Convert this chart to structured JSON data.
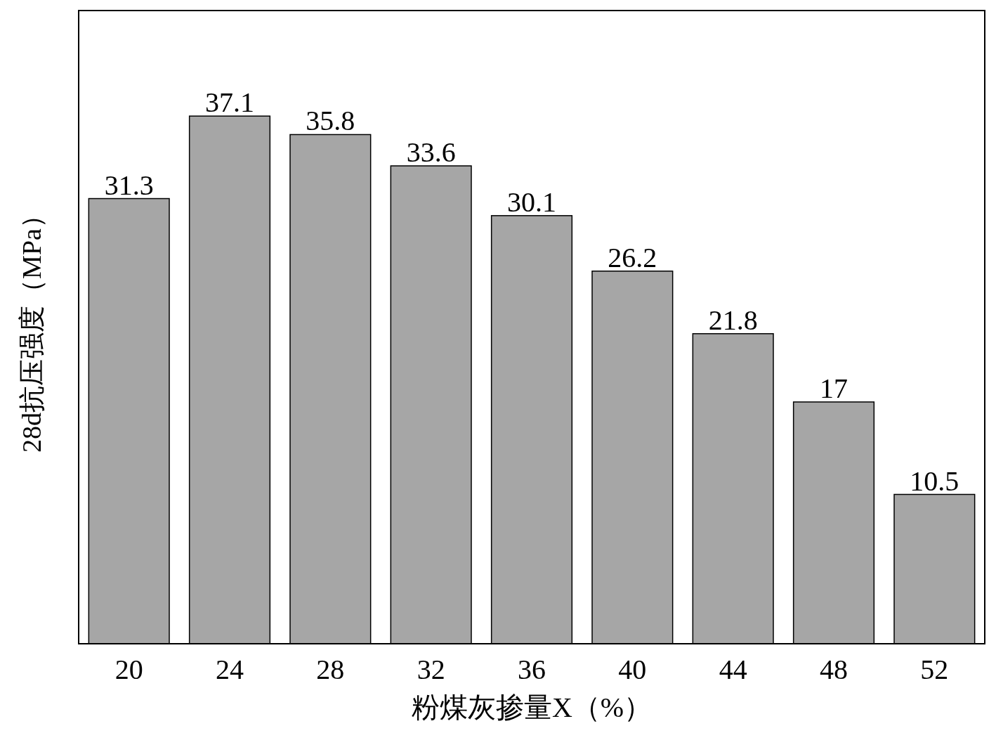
{
  "chart_data": {
    "type": "bar",
    "xlabel": "粉煤灰掺量X（%）",
    "ylabel": "28d抗压强度（MPa）",
    "categories": [
      "20",
      "24",
      "28",
      "32",
      "36",
      "40",
      "44",
      "48",
      "52"
    ],
    "values": [
      31.3,
      37.1,
      35.8,
      33.6,
      30.1,
      26.2,
      21.8,
      17,
      10.5
    ],
    "color": "#a6a6a6",
    "data_labels": true
  }
}
